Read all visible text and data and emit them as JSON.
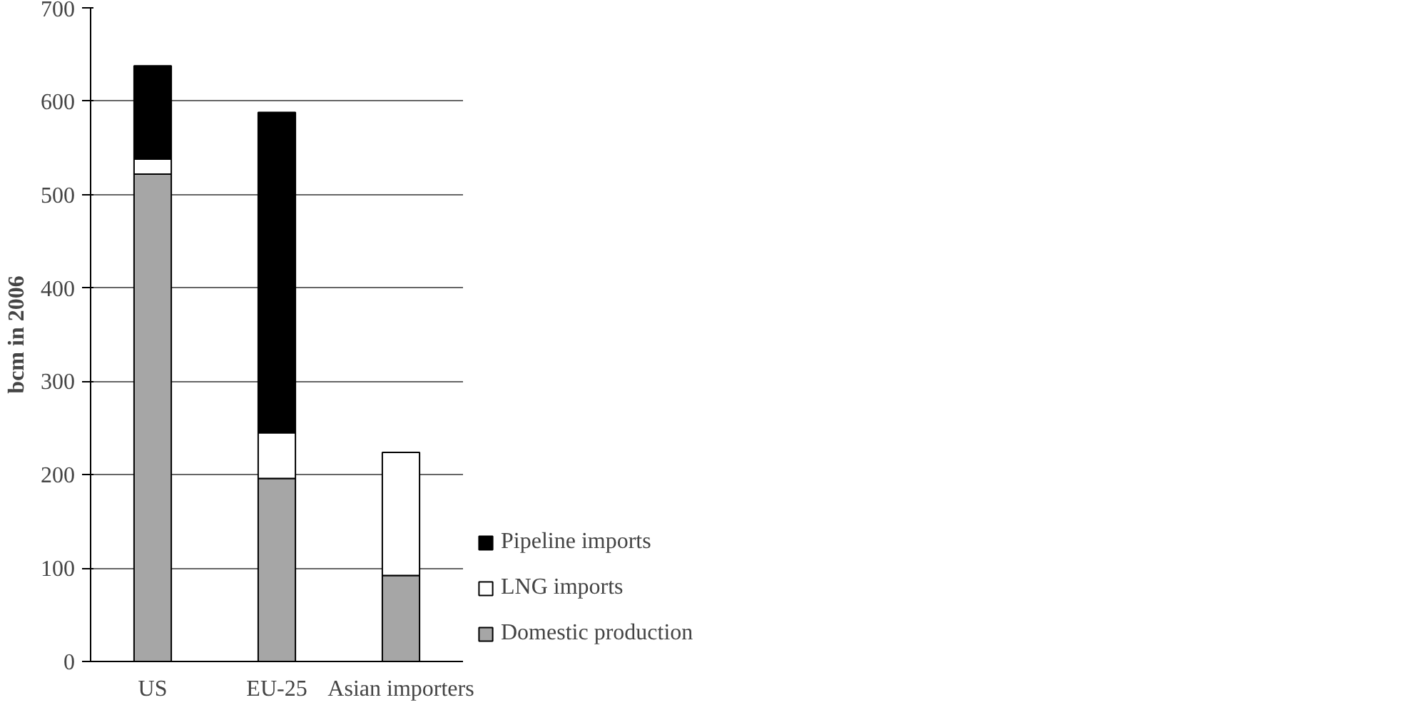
{
  "chart_data": {
    "type": "bar",
    "stacked": true,
    "ylabel": "bcm in 2006",
    "categories": [
      "US",
      "EU-25",
      "Asian importers"
    ],
    "series": [
      {
        "name": "Domestic production",
        "color": "#a6a6a6",
        "values": [
          522,
          196,
          92
        ]
      },
      {
        "name": "LNG imports",
        "color": "#ffffff",
        "values": [
          16,
          49,
          132
        ]
      },
      {
        "name": "Pipeline imports",
        "color": "#000000",
        "values": [
          100,
          343,
          0
        ]
      }
    ],
    "ylim": [
      0,
      700
    ],
    "yticks": [
      0,
      100,
      200,
      300,
      400,
      500,
      600,
      700
    ],
    "grid": "y",
    "legend": "bottom right"
  }
}
